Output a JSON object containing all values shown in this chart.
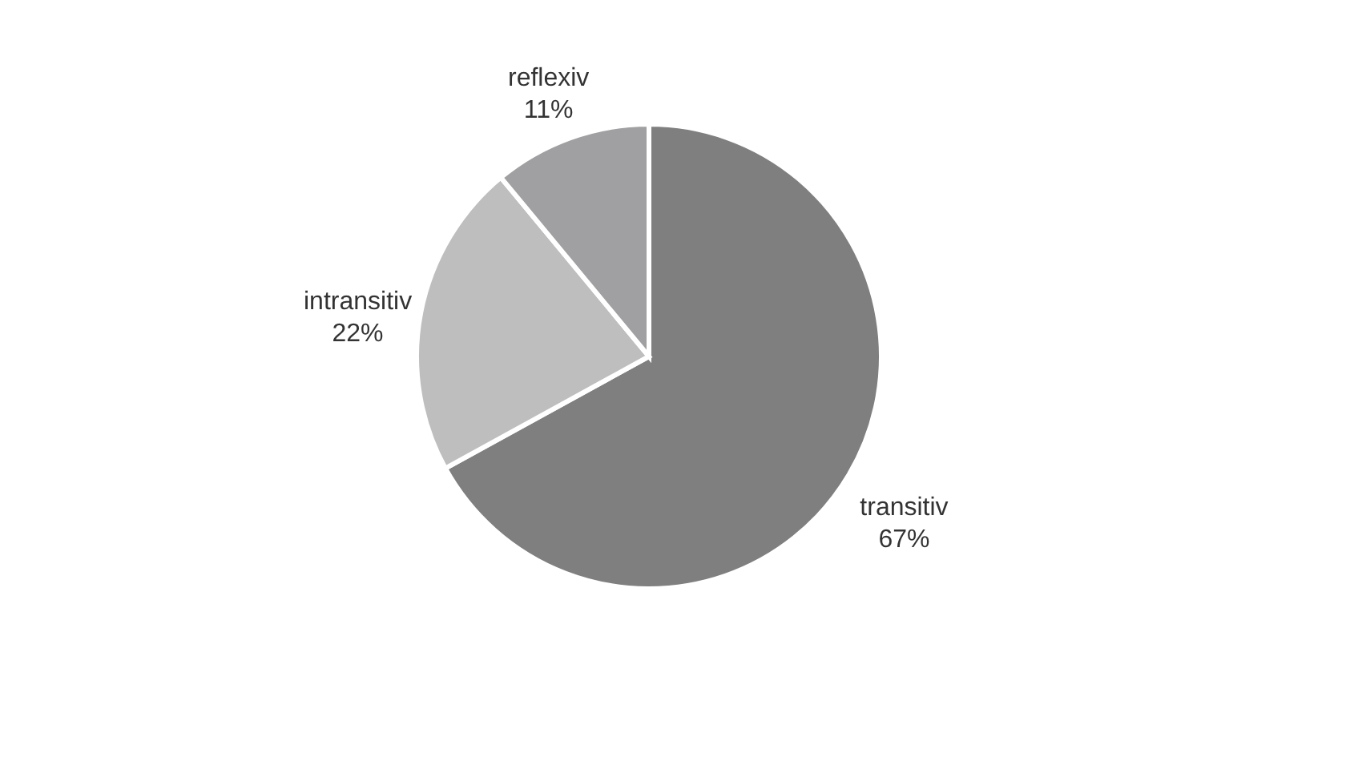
{
  "chart_data": {
    "type": "pie",
    "categories": [
      "transitiv",
      "intransitiv",
      "reflexiv"
    ],
    "values": [
      67,
      22,
      11
    ],
    "value_labels": [
      "67%",
      "22%",
      "11%"
    ],
    "colors": [
      "#7f7f80",
      "#bebebe",
      "#a0a0a2"
    ],
    "legend": false
  }
}
